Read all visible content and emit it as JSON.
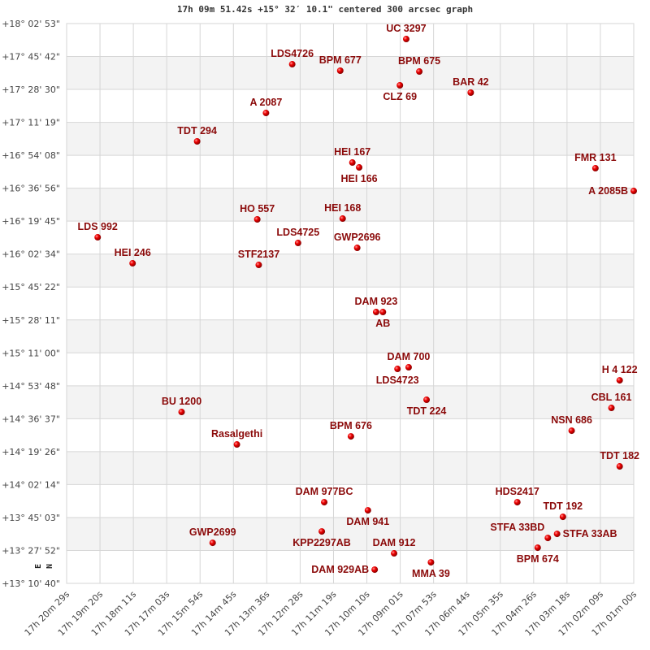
{
  "chart_data": {
    "type": "scatter",
    "title": "17h 09m 51.42s +15° 32′ 10.1\" centered 300 arcsec graph",
    "x_inverted": true,
    "grid": true,
    "x_ticks": [
      "17h 20m 29s",
      "17h 19m 20s",
      "17h 18m 11s",
      "17h 17m 03s",
      "17h 15m 54s",
      "17h 14m 45s",
      "17h 13m 36s",
      "17h 12m 28s",
      "17h 11m 19s",
      "17h 10m 10s",
      "17h 09m 01s",
      "17h 07m 53s",
      "17h 06m 44s",
      "17h 05m 35s",
      "17h 04m 26s",
      "17h 03m 18s",
      "17h 02m 09s",
      "17h 01m 00s"
    ],
    "y_ticks": [
      "+18° 02' 53\"",
      "+17° 45' 42\"",
      "+17° 28' 30\"",
      "+17° 11' 19\"",
      "+16° 54' 08\"",
      "+16° 36' 56\"",
      "+16° 19' 45\"",
      "+16° 02' 34\"",
      "+15° 45' 22\"",
      "+15° 28' 11\"",
      "+15° 11' 00\"",
      "+14° 53' 48\"",
      "+14° 36' 37\"",
      "+14° 19' 26\"",
      "+14° 02' 14\"",
      "+13° 45' 03\"",
      "+13° 27' 52\"",
      "+13° 10' 40\""
    ],
    "compass": {
      "north": "N",
      "east": "E"
    },
    "point_color": "#dd0000",
    "label_color": "#8b0a0a",
    "points": [
      {
        "name": "UC 3297",
        "ra": "17h 08m 49s",
        "dec": "+17° 54' 49\""
      },
      {
        "name": "LDS4726",
        "ra": "17h 12m 44s",
        "dec": "+17° 41' 40\""
      },
      {
        "name": "BPM 677",
        "ra": "17h 11m 05s",
        "dec": "+17° 38' 17\""
      },
      {
        "name": "BPM 675",
        "ra": "17h 08m 22s",
        "dec": "+17° 37' 51\""
      },
      {
        "name": "CLZ  69",
        "ra": "17h 09m 02s",
        "dec": "+17° 30' 39\""
      },
      {
        "name": "BAR  42",
        "ra": "17h 06m 36s",
        "dec": "+17° 26' 50\""
      },
      {
        "name": "A  2087",
        "ra": "17h 13m 38s",
        "dec": "+17° 16' 13\""
      },
      {
        "name": "TDT 294",
        "ra": "17h 16m 00s",
        "dec": "+17° 01' 23\""
      },
      {
        "name": "HEI 167",
        "ra": "17h 10m 40s",
        "dec": "+16° 50' 21\""
      },
      {
        "name": "HEI 166",
        "ra": "17h 10m 26s",
        "dec": "+16° 47' 48\""
      },
      {
        "name": "FMR 131",
        "ra": "17h 02m 19s",
        "dec": "+16° 47' 23\""
      },
      {
        "name": "A  2085B",
        "ra": "17h 01m 00s",
        "dec": "+16° 35' 30\""
      },
      {
        "name": "HO  557",
        "ra": "17h 13m 56s",
        "dec": "+16° 20' 40\""
      },
      {
        "name": "HEI 168",
        "ra": "17h 11m 00s",
        "dec": "+16° 21' 05\""
      },
      {
        "name": "LDS 992",
        "ra": "17h 19m 25s",
        "dec": "+16° 11' 20\""
      },
      {
        "name": "LDS4725",
        "ra": "17h 12m 32s",
        "dec": "+16° 08' 21\""
      },
      {
        "name": "GWP2696",
        "ra": "17h 10m 30s",
        "dec": "+16° 05' 49\""
      },
      {
        "name": "HEI 246",
        "ra": "17h 18m 13s",
        "dec": "+15° 57' 45\""
      },
      {
        "name": "STF2137",
        "ra": "17h 13m 53s",
        "dec": "+15° 56' 54\""
      },
      {
        "name": "DAM 923",
        "ra": "17h 09m 51s",
        "dec": "+15° 32' 18\""
      },
      {
        "name": "AB",
        "ra": "17h 09m 37s",
        "dec": "+15° 32' 18\""
      },
      {
        "name": "LDS4723",
        "ra": "17h 09m 07s",
        "dec": "+15° 02' 37\""
      },
      {
        "name": "DAM 700",
        "ra": "17h 08m 44s",
        "dec": "+15° 03' 28\""
      },
      {
        "name": "H 4 122",
        "ra": "17h 01m 29s",
        "dec": "+14° 56' 40\""
      },
      {
        "name": "TDT 224",
        "ra": "17h 08m 07s",
        "dec": "+14° 46' 30\""
      },
      {
        "name": "CBL 161",
        "ra": "17h 01m 46s",
        "dec": "+14° 42' 15\""
      },
      {
        "name": "BU 1200",
        "ra": "17h 16m 32s",
        "dec": "+14° 40' 08\""
      },
      {
        "name": "BPM 676",
        "ra": "17h 10m 43s",
        "dec": "+14° 27' 24\""
      },
      {
        "name": "NSN 686",
        "ra": "17h 03m 08s",
        "dec": "+14° 30' 22\""
      },
      {
        "name": "Rasalgethi",
        "ra": "17h 14m 38s",
        "dec": "+14° 23' 10\""
      },
      {
        "name": "TDT 182",
        "ra": "17h 01m 29s",
        "dec": "+14° 11' 43\""
      },
      {
        "name": "HDS2417",
        "ra": "17h 05m 00s",
        "dec": "+13° 53' 03\""
      },
      {
        "name": "DAM 977BC",
        "ra": "17h 11m 38s",
        "dec": "+13° 53' 03\""
      },
      {
        "name": "DAM 941",
        "ra": "17h 10m 08s",
        "dec": "+13° 48' 48\""
      },
      {
        "name": "TDT 192",
        "ra": "17h 03m 26s",
        "dec": "+13° 45' 25\""
      },
      {
        "name": "KPP2297AB",
        "ra": "17h 11m 43s",
        "dec": "+13° 37' 47\""
      },
      {
        "name": "STFA 33AB",
        "ra": "17h 03m 38s",
        "dec": "+13° 36' 30\""
      },
      {
        "name": "STFA 33BD",
        "ra": "17h 03m 57s",
        "dec": "+13° 34' 23\""
      },
      {
        "name": "GWP2699",
        "ra": "17h 15m 28s",
        "dec": "+13° 31' 50\""
      },
      {
        "name": "BPM 674",
        "ra": "17h 04m 18s",
        "dec": "+13° 29' 18\""
      },
      {
        "name": "DAM 912",
        "ra": "17h 09m 14s",
        "dec": "+13° 26' 20\""
      },
      {
        "name": "MMA  39",
        "ra": "17h 07m 58s",
        "dec": "+13° 21' 40\""
      },
      {
        "name": "DAM 929AB",
        "ra": "17h 09m 54s",
        "dec": "+13° 17' 51\""
      }
    ]
  }
}
